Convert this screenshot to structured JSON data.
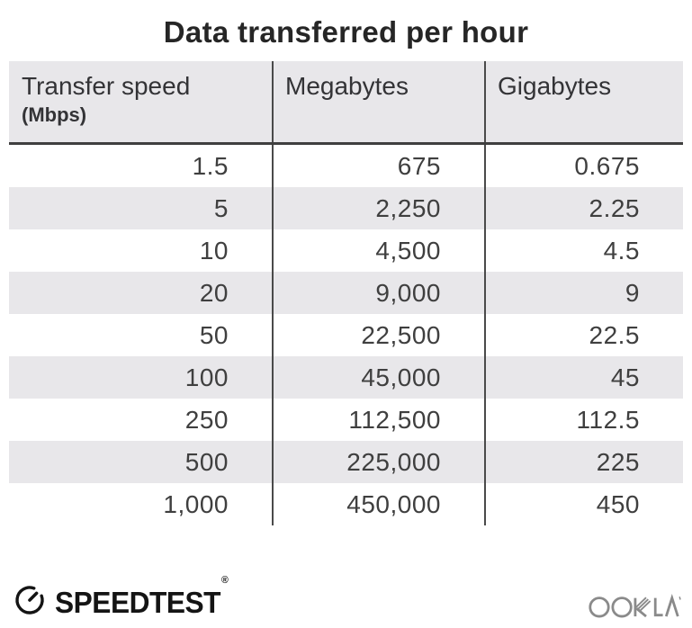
{
  "title": "Data transferred per hour",
  "table": {
    "columns": [
      {
        "label": "Transfer speed",
        "sublabel": "(Mbps)"
      },
      {
        "label": "Megabytes"
      },
      {
        "label": "Gigabytes"
      }
    ],
    "rows": [
      [
        "1.5",
        "675",
        "0.675"
      ],
      [
        "5",
        "2,250",
        "2.25"
      ],
      [
        "10",
        "4,500",
        "4.5"
      ],
      [
        "20",
        "9,000",
        "9"
      ],
      [
        "50",
        "22,500",
        "22.5"
      ],
      [
        "100",
        "45,000",
        "45"
      ],
      [
        "250",
        "112,500",
        "112.5"
      ],
      [
        "500",
        "225,000",
        "225"
      ],
      [
        "1,000",
        "450,000",
        "450"
      ]
    ]
  },
  "footer": {
    "speedtest_label": "SPEEDTEST",
    "speedtest_trademark": "®",
    "ookla_label": "OOKLA"
  },
  "colors": {
    "page_bg": "#ffffff",
    "header_bg": "#e8e7ea",
    "stripe_bg": "#e8e7ea",
    "grid_line": "#4a4a4a",
    "header_rule": "#3f3f3f",
    "body_text": "#3f3f3f",
    "title_text": "#262626",
    "logo_black": "#141414",
    "ookla_gray": "#8a8a8a"
  },
  "chart_data": {
    "type": "table",
    "title": "Data transferred per hour",
    "columns": [
      "Transfer speed (Mbps)",
      "Megabytes",
      "Gigabytes"
    ],
    "rows": [
      [
        1.5,
        675,
        0.675
      ],
      [
        5,
        2250,
        2.25
      ],
      [
        10,
        4500,
        4.5
      ],
      [
        20,
        9000,
        9
      ],
      [
        50,
        22500,
        22.5
      ],
      [
        100,
        45000,
        45
      ],
      [
        250,
        112500,
        112.5
      ],
      [
        500,
        225000,
        225
      ],
      [
        1000,
        450000,
        450
      ]
    ]
  }
}
